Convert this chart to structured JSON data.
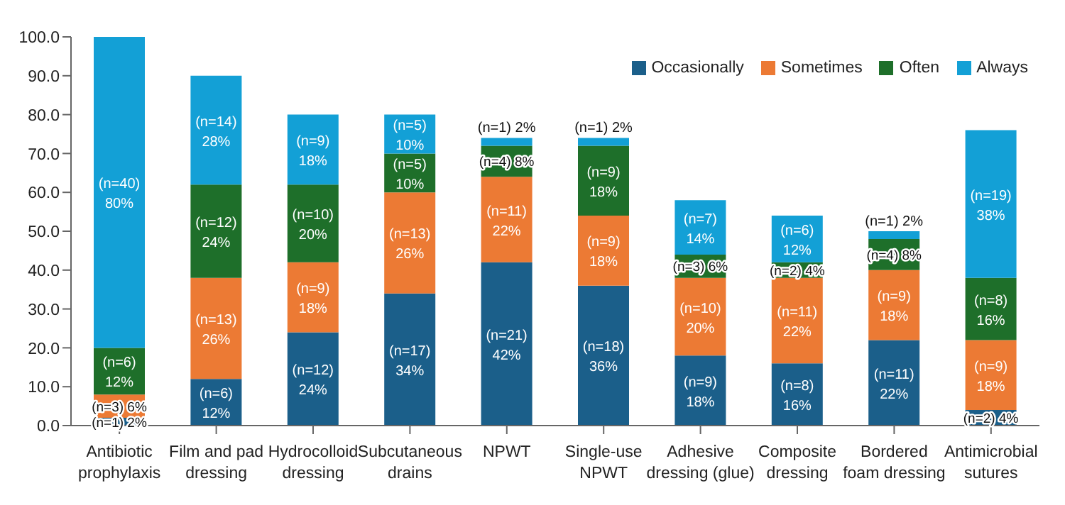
{
  "chart_data": {
    "type": "bar",
    "stacked": true,
    "categories": [
      "Antibiotic prophylaxis",
      "Film and pad dressing",
      "Hydrocolloid dressing",
      "Subcutaneous drains",
      "NPWT",
      "Single-use NPWT",
      "Adhesive dressing (glue)",
      "Composite dressing",
      "Bordered foam dressing",
      "Antimicrobial sutures"
    ],
    "series": [
      {
        "name": "Occasionally",
        "color": "#1b5f8a",
        "values": [
          2,
          12,
          24,
          34,
          42,
          36,
          18,
          16,
          22,
          4
        ],
        "value_labels": [
          "(n=1) 2%",
          "(n=6) 12%",
          "(n=12) 24%",
          "(n=17) 34%",
          "(n=21) 42%",
          "(n=18) 36%",
          "(n=9) 18%",
          "(n=8) 16%",
          "(n=11) 22%",
          "(n=2) 4%"
        ]
      },
      {
        "name": "Sometimes",
        "color": "#ec7a34",
        "values": [
          6,
          26,
          18,
          26,
          22,
          18,
          20,
          22,
          18,
          18
        ],
        "value_labels": [
          "(n=3) 6%",
          "(n=13) 26%",
          "(n=9) 18%",
          "(n=13) 26%",
          "(n=11) 22%",
          "(n=9) 18%",
          "(n=10) 20%",
          "(n=11) 22%",
          "(n=9) 18%",
          "(n=9) 18%"
        ]
      },
      {
        "name": "Often",
        "color": "#1e6f2a",
        "values": [
          12,
          24,
          20,
          10,
          8,
          18,
          6,
          4,
          8,
          16
        ],
        "value_labels": [
          "(n=6) 12%",
          "(n=12) 24%",
          "(n=10) 20%",
          "(n=5) 10%",
          "(n=4) 8%",
          "(n=9) 18%",
          "(n=3) 6%",
          "(n=2) 4%",
          "(n=4) 8%",
          "(n=8) 16%"
        ]
      },
      {
        "name": "Always",
        "color": "#13a0d6",
        "values": [
          80,
          28,
          18,
          10,
          2,
          2,
          14,
          12,
          2,
          38
        ],
        "value_labels": [
          "(n=40) 80%",
          "(n=14) 28%",
          "(n=9) 18%",
          "(n=5) 10%",
          "(n=1) 2%",
          "(n=1) 2%",
          "(n=7) 14%",
          "(n=6) 12%",
          "(n=1) 2%",
          "(n=19) 38%"
        ]
      }
    ],
    "ylim": [
      0,
      100
    ],
    "yticks": [
      {
        "value": 0,
        "label": "0.0"
      },
      {
        "value": 10,
        "label": "10.0"
      },
      {
        "value": 20,
        "label": "20.0"
      },
      {
        "value": 30,
        "label": "30.0"
      },
      {
        "value": 40,
        "label": "40.0"
      },
      {
        "value": 50,
        "label": "50.0"
      },
      {
        "value": 60,
        "label": "60.0"
      },
      {
        "value": 70,
        "label": "70.0"
      },
      {
        "value": 80,
        "label": "80.0"
      },
      {
        "value": 90,
        "label": "90.0"
      },
      {
        "value": 100,
        "label": "100.0"
      }
    ],
    "grid": false,
    "legend": "top right"
  }
}
